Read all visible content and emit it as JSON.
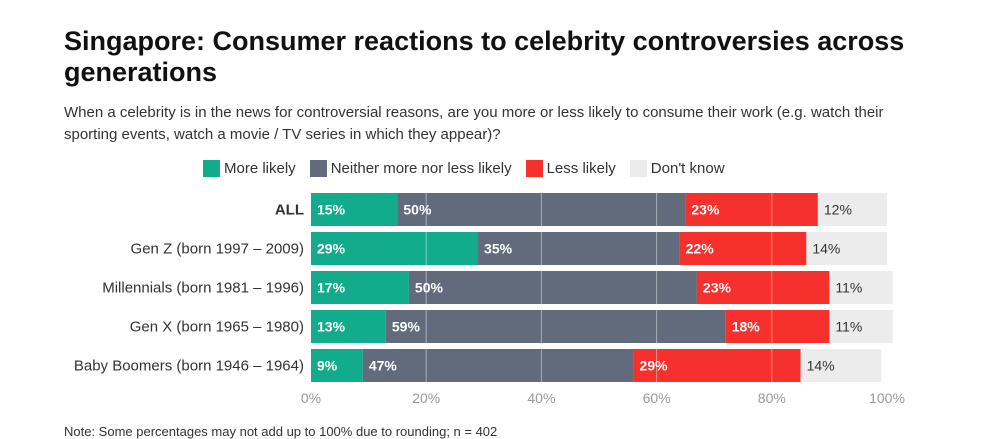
{
  "header": {
    "title": "Singapore: Consumer reactions to celebrity controversies across generations",
    "subtitle": "When a celebrity is in the news for controversial reasons, are you more or less likely to consume their work (e.g. watch their sporting events, watch a movie / TV series in which they appear)?"
  },
  "colors": {
    "more_likely": "#12ab8c",
    "neither": "#626b7b",
    "less_likely": "#f5302d",
    "dont_know": "#ececec"
  },
  "chart_data": {
    "type": "bar",
    "orientation": "horizontal",
    "stacked": true,
    "categories": [
      "ALL",
      "Gen Z (born 1997 – 2009)",
      "Millennials (born 1981 – 1996)",
      "Gen X (born 1965 – 1980)",
      "Baby Boomers (born 1946 – 1964)"
    ],
    "series": [
      {
        "name": "More likely",
        "values": [
          15,
          29,
          17,
          13,
          9
        ],
        "labels": [
          "15%",
          "29%",
          "17%",
          "13%",
          "9%"
        ]
      },
      {
        "name": "Neither more nor less likely",
        "values": [
          50,
          35,
          50,
          59,
          47
        ],
        "labels": [
          "50%",
          "35%",
          "50%",
          "59%",
          "47%"
        ]
      },
      {
        "name": "Less likely",
        "values": [
          23,
          22,
          23,
          18,
          29
        ],
        "labels": [
          "23%",
          "22%",
          "23%",
          "18%",
          "29%"
        ]
      },
      {
        "name": "Don't know",
        "values": [
          12,
          14,
          11,
          11,
          14
        ],
        "labels": [
          "12%",
          "14%",
          "11%",
          "11%",
          "14%"
        ]
      }
    ],
    "xlim": [
      0,
      100
    ],
    "x_ticks": [
      "0%",
      "20%",
      "40%",
      "60%",
      "80%",
      "100%"
    ],
    "legend": "top",
    "grid": true
  },
  "footer": {
    "note": "Note: Some percentages may not add up to 100% due to rounding; n = 402"
  }
}
